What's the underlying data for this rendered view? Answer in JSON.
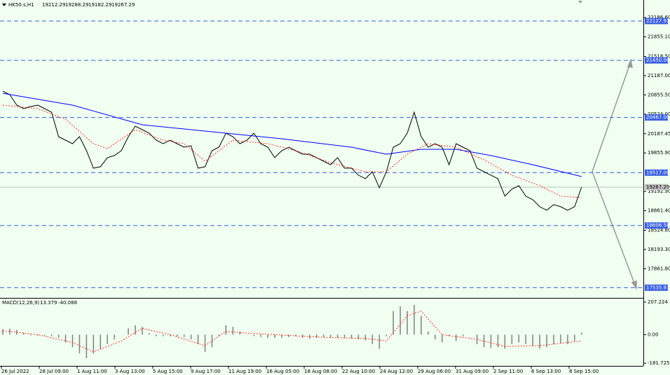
{
  "chart_data": [
    {
      "type": "line",
      "title": "HK50.s,H1",
      "ohlc": [
        19212.29,
        19288.29,
        19182.29,
        19267.29
      ],
      "time_labels": [
        "26 Jul 2022",
        "28 Jul 09:00",
        "1 Aug 11:00",
        "3 Aug 13:00",
        "5 Aug 15:00",
        "9 Aug 17:00",
        "11 Aug 19:00",
        "16 Aug 05:00",
        "18 Aug 08:00",
        "22 Aug 10:00",
        "24 Aug 12:00",
        "29 Aug 06:00",
        "31 Aug 09:00",
        "2 Sep 11:00",
        "6 Sep 13:00",
        "8 Sep 15:00"
      ],
      "series": [
        {
          "color": "#000000",
          "values": [
            20920,
            20860,
            20679,
            20619,
            20655,
            20679,
            20619,
            20558,
            20136,
            20076,
            20016,
            20136,
            19895,
            19594,
            19618,
            19775,
            19811,
            19895,
            20136,
            20317,
            20257,
            20197,
            20076,
            20016,
            20076,
            20016,
            19955,
            19980,
            19594,
            19618,
            19895,
            19955,
            20197,
            20136,
            20016,
            20076,
            20197,
            20016,
            19955,
            19775,
            19895,
            19955,
            19895,
            19835,
            19835,
            19775,
            19714,
            19654,
            19775,
            19594,
            19594,
            19473,
            19413,
            19533,
            19256,
            19533,
            19955,
            20016,
            20197,
            20558,
            20136,
            19955,
            20016,
            19955,
            19654,
            20016,
            19955,
            19895,
            19594,
            19533,
            19473,
            19413,
            19111,
            19232,
            19292,
            19111,
            19051,
            18930,
            18870,
            18967,
            18930,
            18870,
            18930,
            19267.29
          ]
        },
        {
          "color": "#0000ff",
          "x": [
            0,
            10,
            20,
            30,
            40,
            50,
            55,
            60,
            65,
            70,
            76,
            83
          ],
          "values": [
            20884,
            20679,
            20341,
            20221,
            20100,
            19955,
            19835,
            19919,
            19919,
            19811,
            19654,
            19449
          ]
        },
        {
          "color": "#ff0000",
          "dashed": true,
          "x": [
            0,
            5,
            9,
            13,
            15,
            19,
            23,
            26,
            29,
            33,
            38,
            42,
            47,
            52,
            55,
            58,
            61,
            65,
            69,
            73,
            77,
            80,
            83
          ],
          "values": [
            20679,
            20619,
            20438,
            20016,
            19931,
            20257,
            20076,
            20016,
            19714,
            20076,
            20016,
            19895,
            19690,
            19533,
            19533,
            19835,
            20016,
            19955,
            19738,
            19473,
            19292,
            19111,
            19087
          ]
        }
      ],
      "ylim": [
        17360,
        22490
      ],
      "yticks": [
        {
          "value": 22186.6,
          "label": "22186.60"
        },
        {
          "value": 21855.1,
          "label": "21855.10"
        },
        {
          "value": 21518.5,
          "label": "21518.50"
        },
        {
          "value": 21187,
          "label": "21187.00"
        },
        {
          "value": 20855.5,
          "label": "20855.50"
        },
        {
          "value": 20524,
          "label": "20524.00"
        },
        20187.45,
        {
          "value": 19855.9,
          "label": "19855.90"
        },
        {
          "value": 19192.9,
          "label": "19192.90"
        },
        {
          "value": 18861.4,
          "label": "18861.40"
        },
        {
          "value": 18524.8,
          "label": "18524.80"
        },
        {
          "value": 18193.3,
          "label": "18193.30"
        },
        {
          "value": 17861.8,
          "label": "17861.80"
        }
      ],
      "levels": [
        22127.93,
        {
          "value": 21450,
          "label": "21450.00"
        },
        {
          "value": 20467,
          "label": "20467.00"
        },
        {
          "value": 19517,
          "label": "19517.00"
        },
        18606.58,
        17535.97
      ],
      "level_color": "#3a5fe0",
      "last_price": 19267.29
    },
    {
      "type": "macd",
      "title": "MACD(12,26,9)",
      "main": 13.379,
      "signal": -40.088,
      "histogram": [
        35,
        38,
        30,
        10,
        -5,
        -5,
        -5,
        -10,
        -20,
        -50,
        -80,
        -120,
        -150,
        -120,
        -90,
        -60,
        -30,
        0,
        40,
        60,
        50,
        10,
        -10,
        -10,
        -10,
        -12,
        -15,
        -30,
        -60,
        -110,
        -80,
        -10,
        60,
        50,
        20,
        0,
        -10,
        -15,
        -20,
        -20,
        -20,
        -15,
        -10,
        -20,
        -25,
        -20,
        -15,
        -18,
        -20,
        -22,
        -25,
        -30,
        -35,
        -60,
        -90,
        -10,
        150,
        180,
        150,
        190,
        120,
        20,
        -30,
        -50,
        -10,
        -40,
        -10,
        0,
        -60,
        -80,
        -85,
        -80,
        -90,
        -60,
        -50,
        -60,
        -70,
        -90,
        -80,
        -60,
        -55,
        -60,
        -40,
        13
      ],
      "histogram_color": "#808080",
      "signal_line": {
        "color": "#ff0000",
        "x": [
          0,
          5,
          10,
          13,
          17,
          20,
          24,
          29,
          32,
          35,
          45,
          52,
          55,
          58,
          60,
          63,
          68,
          72,
          77,
          83
        ],
        "values": [
          25,
          0,
          -50,
          -110,
          -40,
          40,
          0,
          -70,
          20,
          10,
          -15,
          -25,
          -40,
          120,
          150,
          0,
          -30,
          -75,
          -70,
          -40
        ]
      },
      "ylim": [
        -199,
        225
      ],
      "yticks": [
        207.224,
        {
          "value": 0,
          "label": "0.00"
        },
        -181.725
      ]
    }
  ]
}
